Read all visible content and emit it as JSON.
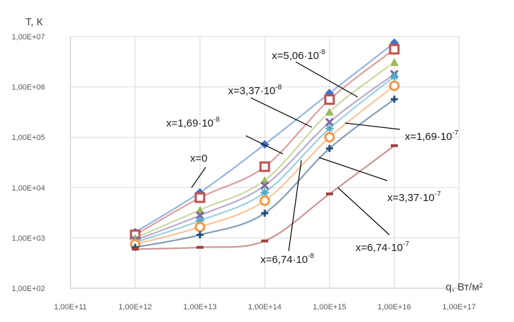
{
  "chart_data": {
    "type": "line",
    "xscale": "log",
    "yscale": "log",
    "xlim": [
      100000000000.0,
      1e+17
    ],
    "ylim": [
      100,
      10000000
    ],
    "grid": true,
    "ylabel": "T, К",
    "xlabel": "q, Вт/м²",
    "xticks": [
      "1,00E+11",
      "1,00E+12",
      "1,00E+13",
      "1,00E+14",
      "1,00E+15",
      "1,00E+16",
      "1,00E+17"
    ],
    "yticks": [
      "1,00E+02",
      "1,00E+03",
      "1,00E+04",
      "1,00E+05",
      "1,00E+06",
      "1,00E+07"
    ],
    "x": [
      1000000000000.0,
      10000000000000.0,
      100000000000000.0,
      1000000000000000.0,
      1e+16
    ],
    "series": [
      {
        "name": "x=0",
        "values": [
          1300,
          8000,
          72000,
          750000,
          7500000
        ],
        "color": "#4472C4",
        "marker": "diamond"
      },
      {
        "name": "x=1,69·10⁻⁸",
        "values": [
          1150,
          6300,
          26000,
          560000,
          5600000
        ],
        "color": "#C0504D",
        "marker": "square"
      },
      {
        "name": "",
        "values": [
          1000,
          3600,
          14000,
          320000,
          3100000
        ],
        "color": "#9BBB59",
        "marker": "triangle"
      },
      {
        "name": "x=5,06·10⁻⁸",
        "values": [
          900,
          2800,
          11000,
          200000,
          1800000
        ],
        "color": "#8064A2",
        "marker": "x"
      },
      {
        "name": "x=3,37·10⁻⁸",
        "values": [
          820,
          2200,
          8000,
          150000,
          1600000
        ],
        "color": "#4BACC6",
        "marker": "star"
      },
      {
        "name": "x=1,69·10⁻⁷",
        "values": [
          750,
          1650,
          5500,
          100000,
          1050000
        ],
        "color": "#F79646",
        "marker": "circle"
      },
      {
        "name": "x=6,74·10⁻⁸",
        "values": [
          650,
          1150,
          3100,
          60000,
          570000
        ],
        "color": "#1F4E79",
        "marker": "plus"
      },
      {
        "name": "x=6,74·10⁻⁷",
        "values": [
          600,
          650,
          870,
          7500,
          68000
        ],
        "color": "#A0413E",
        "marker": "dash"
      }
    ],
    "annotations": [
      {
        "base": "x=5,06·10",
        "exp": "-8"
      },
      {
        "base": "x=3,37·10",
        "exp": "-8"
      },
      {
        "base": "x=1,69·10",
        "exp": "-8"
      },
      {
        "base": "x=0",
        "exp": ""
      },
      {
        "base": "x=1,69·10",
        "exp": "-7"
      },
      {
        "base": "x=3,37·10",
        "exp": "-7"
      },
      {
        "base": "x=6,74·10",
        "exp": "-7"
      },
      {
        "base": "x=6,74·10",
        "exp": "-8"
      }
    ]
  }
}
